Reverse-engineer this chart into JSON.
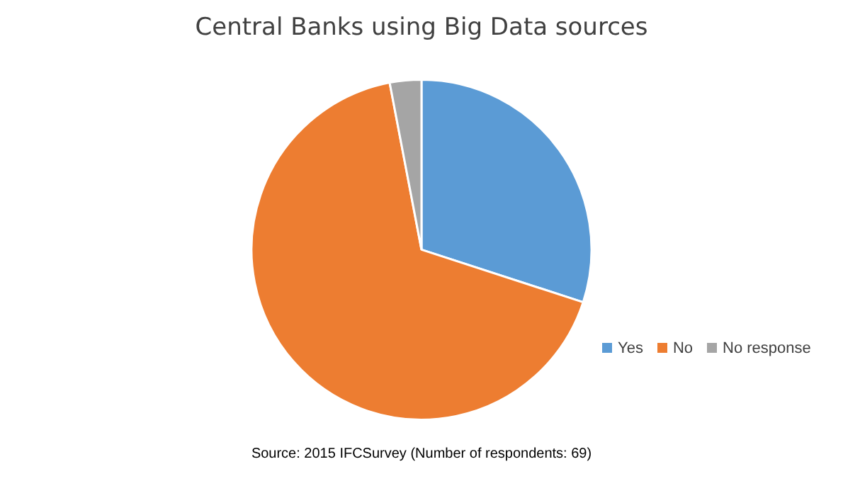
{
  "chart_data": {
    "type": "pie",
    "title": "Central Banks using Big Data sources",
    "categories": [
      "Yes",
      "No",
      "No response"
    ],
    "values": [
      30,
      67,
      3
    ],
    "colors": [
      "#5b9bd5",
      "#ed7d31",
      "#a5a5a5"
    ],
    "legend": "bottom right",
    "annotations": [
      "Source: 2015 IFCSurvey (Number of respondents: 69)"
    ]
  }
}
